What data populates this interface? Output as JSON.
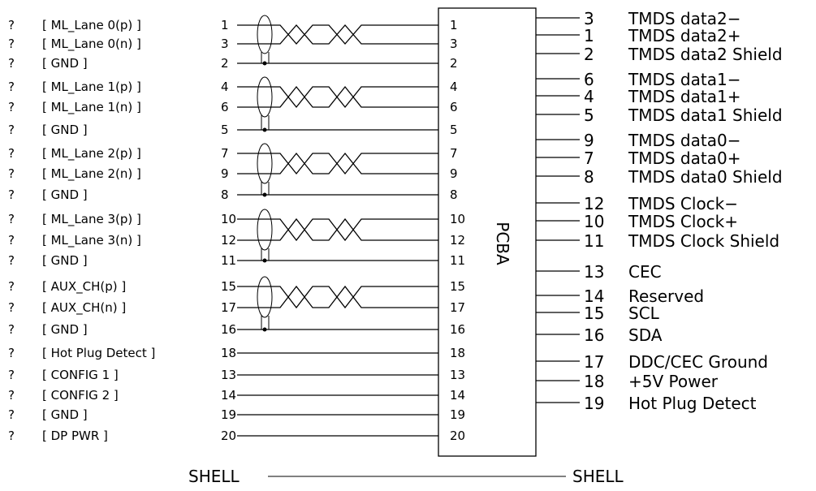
{
  "left_rows": [
    {
      "q": "?",
      "signal": "[ ML_Lane 0(p) ]",
      "pin": "1",
      "pcb_pin": "1"
    },
    {
      "q": "?",
      "signal": "[ ML_Lane 0(n) ]",
      "pin": "3",
      "pcb_pin": "3"
    },
    {
      "q": "?",
      "signal": "[ GND ]",
      "pin": "2",
      "pcb_pin": "2"
    },
    {
      "q": "?",
      "signal": "[ ML_Lane 1(p) ]",
      "pin": "4",
      "pcb_pin": "4"
    },
    {
      "q": "?",
      "signal": "[ ML_Lane 1(n) ]",
      "pin": "6",
      "pcb_pin": "6"
    },
    {
      "q": "?",
      "signal": "[ GND ]",
      "pin": "5",
      "pcb_pin": "5"
    },
    {
      "q": "?",
      "signal": "[ ML_Lane 2(p) ]",
      "pin": "7",
      "pcb_pin": "7"
    },
    {
      "q": "?",
      "signal": "[ ML_Lane 2(n) ]",
      "pin": "9",
      "pcb_pin": "9"
    },
    {
      "q": "?",
      "signal": "[ GND ]",
      "pin": "8",
      "pcb_pin": "8"
    },
    {
      "q": "?",
      "signal": "[ ML_Lane 3(p) ]",
      "pin": "10",
      "pcb_pin": "10"
    },
    {
      "q": "?",
      "signal": "[ ML_Lane 3(n) ]",
      "pin": "12",
      "pcb_pin": "12"
    },
    {
      "q": "?",
      "signal": "[ GND ]",
      "pin": "11",
      "pcb_pin": "11"
    },
    {
      "q": "?",
      "signal": "[ AUX_CH(p) ]",
      "pin": "15",
      "pcb_pin": "15"
    },
    {
      "q": "?",
      "signal": "[ AUX_CH(n) ]",
      "pin": "17",
      "pcb_pin": "17"
    },
    {
      "q": "?",
      "signal": "[ GND ]",
      "pin": "16",
      "pcb_pin": "16"
    },
    {
      "q": "?",
      "signal": "[ Hot Plug Detect ]",
      "pin": "18",
      "pcb_pin": "18"
    },
    {
      "q": "?",
      "signal": "[ CONFIG 1 ]",
      "pin": "13",
      "pcb_pin": "13"
    },
    {
      "q": "?",
      "signal": "[ CONFIG 2 ]",
      "pin": "14",
      "pcb_pin": "14"
    },
    {
      "q": "?",
      "signal": "[ GND ]",
      "pin": "19",
      "pcb_pin": "19"
    },
    {
      "q": "?",
      "signal": "[ DP PWR ]",
      "pin": "20",
      "pcb_pin": "20"
    }
  ],
  "pcba_label": "PCBA",
  "right_rows": [
    {
      "pin": "3",
      "label": "TMDS data2−"
    },
    {
      "pin": "1",
      "label": "TMDS data2+"
    },
    {
      "pin": "2",
      "label": "TMDS data2 Shield"
    },
    {
      "pin": "6",
      "label": "TMDS data1−"
    },
    {
      "pin": "4",
      "label": "TMDS data1+"
    },
    {
      "pin": "5",
      "label": "TMDS data1 Shield"
    },
    {
      "pin": "9",
      "label": "TMDS data0−"
    },
    {
      "pin": "7",
      "label": "TMDS data0+"
    },
    {
      "pin": "8",
      "label": "TMDS data0 Shield"
    },
    {
      "pin": "12",
      "label": "TMDS Clock−"
    },
    {
      "pin": "10",
      "label": "TMDS Clock+"
    },
    {
      "pin": "11",
      "label": "TMDS Clock Shield"
    },
    {
      "pin": "13",
      "label": "CEC"
    },
    {
      "pin": "14",
      "label": "Reserved"
    },
    {
      "pin": "15",
      "label": "SCL"
    },
    {
      "pin": "16",
      "label": "SDA"
    },
    {
      "pin": "17",
      "label": "DDC/CEC Ground"
    },
    {
      "pin": "18",
      "label": "+5V Power"
    },
    {
      "pin": "19",
      "label": "Hot Plug Detect"
    }
  ],
  "shell": {
    "left": "SHELL",
    "right": "SHELL"
  }
}
